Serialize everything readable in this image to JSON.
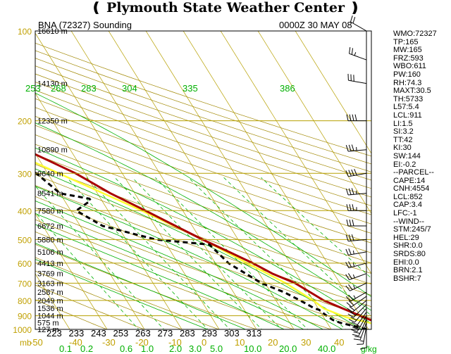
{
  "header": {
    "title": "Plymouth State Weather Center",
    "station_label": "BNA (72327) Sounding",
    "time_label": "0000Z 30 MAY 08"
  },
  "stats": [
    "WMO:72327",
    "TP:165",
    "MW:165",
    "FRZ:593",
    "WBO:611",
    "PW:160",
    "RH:74.3",
    "MAXT:30.5",
    "TH:5733",
    "L57:5.4",
    "LCL:911",
    "LI:1.5",
    "SI:3.2",
    "TT:42",
    "KI:30",
    "SW:144",
    "EI:-0.2",
    "--PARCEL--",
    "CAPE:14",
    "CNH:4554",
    "LCL:852",
    "CAP:3.4",
    "LFC:-1",
    "--WIND--",
    "STM:245/7",
    "HEL:29",
    "SHR:0.0",
    "SRDS:80",
    "EHI:0.0",
    "BRN:2.1",
    "BSHR:7"
  ],
  "colors": {
    "frame": "#000000",
    "isobar": "#b7a000",
    "isotherm": "#b7a000",
    "dry_adiabat": "#a08700",
    "moist_adiabat": "#00b000",
    "mixing_ratio": "#00b000",
    "temperature": "#a80000",
    "dewpoint": "#000000",
    "parcel": "#ffff33",
    "wind": "#000000",
    "axis_text": "#c0a000",
    "height_text": "#000000"
  },
  "chart_data": {
    "type": "line",
    "title": "BNA (72327) Sounding",
    "xlabel": "",
    "ylabel": "mb",
    "ylim": [
      1000,
      100
    ],
    "pressure_ticks": [
      100,
      200,
      300,
      400,
      500,
      600,
      700,
      800,
      900,
      1000
    ],
    "temperature_ticks": [
      "-50",
      "-40",
      "-30",
      "-20",
      "-10",
      "0",
      "10",
      "20",
      "30",
      "40"
    ],
    "bottom_theta_labels": [
      "223",
      "233",
      "243",
      "253",
      "263",
      "273",
      "283",
      "293",
      "303",
      "313"
    ],
    "upper_theta_labels": [
      "253",
      "268",
      "283",
      "304",
      "335",
      "386"
    ],
    "mixing_ratio_unit": "g/kg",
    "mixing_ratio_labels": [
      "0.1",
      "0.2",
      "0.6",
      "1.0",
      "2.0",
      "3.0",
      "5.0",
      "10.0",
      "20.0",
      "40.0"
    ],
    "height_labels": [
      {
        "p": 100,
        "label": "16610 m"
      },
      {
        "p": 150,
        "label": "14130 m"
      },
      {
        "p": 200,
        "label": "12350 m"
      },
      {
        "p": 250,
        "label": "10890 m"
      },
      {
        "p": 300,
        "label": "9640 m"
      },
      {
        "p": 350,
        "label": "8541 m"
      },
      {
        "p": 400,
        "label": "7580 m"
      },
      {
        "p": 450,
        "label": "6672 m"
      },
      {
        "p": 500,
        "label": "5880 m"
      },
      {
        "p": 550,
        "label": "5106 m"
      },
      {
        "p": 600,
        "label": "4413 m"
      },
      {
        "p": 650,
        "label": "3769 m"
      },
      {
        "p": 700,
        "label": "3163 m"
      },
      {
        "p": 750,
        "label": "2587 m"
      },
      {
        "p": 800,
        "label": "2049 m"
      },
      {
        "p": 850,
        "label": "1536 m"
      },
      {
        "p": 900,
        "label": "1044 m"
      },
      {
        "p": 950,
        "label": "575 m"
      },
      {
        "p": 1000,
        "label": "127 m"
      }
    ],
    "series": [
      {
        "key": "temperature",
        "points": [
          [
            1000,
            27.5
          ],
          [
            950,
            23.5
          ],
          [
            900,
            20
          ],
          [
            850,
            16.5
          ],
          [
            800,
            12.8
          ],
          [
            750,
            10.5
          ],
          [
            700,
            8
          ],
          [
            650,
            3.5
          ],
          [
            600,
            0
          ],
          [
            550,
            -4.5
          ],
          [
            500,
            -9.5
          ],
          [
            450,
            -14.5
          ],
          [
            400,
            -20
          ],
          [
            350,
            -26.5
          ],
          [
            300,
            -32.5
          ],
          [
            250,
            -42
          ],
          [
            200,
            -52
          ],
          [
            160,
            -60.5
          ],
          [
            150,
            -59
          ],
          [
            125,
            -52
          ],
          [
            100,
            -49
          ]
        ]
      },
      {
        "key": "dewpoint",
        "points": [
          [
            1000,
            19.5
          ],
          [
            970,
            16
          ],
          [
            950,
            13.5
          ],
          [
            930,
            12
          ],
          [
            900,
            11
          ],
          [
            860,
            10
          ],
          [
            850,
            9
          ],
          [
            800,
            6.5
          ],
          [
            750,
            3.5
          ],
          [
            700,
            -1
          ],
          [
            600,
            -6.5
          ],
          [
            520,
            -8.5
          ],
          [
            500,
            -22
          ],
          [
            450,
            -34
          ],
          [
            400,
            -38.5
          ],
          [
            370,
            -33
          ],
          [
            365,
            -33
          ],
          [
            350,
            -40
          ],
          [
            300,
            -43
          ],
          [
            250,
            -52
          ],
          [
            200,
            -62
          ],
          [
            160,
            -75
          ],
          [
            140,
            -67
          ],
          [
            130,
            -62
          ],
          [
            120,
            -63
          ],
          [
            115,
            -60
          ],
          [
            100,
            -60
          ]
        ]
      },
      {
        "key": "parcel",
        "points": [
          [
            1000,
            27.5
          ],
          [
            911,
            16
          ],
          [
            852,
            11.5
          ],
          [
            800,
            10
          ],
          [
            700,
            5.5
          ],
          [
            600,
            -1.5
          ],
          [
            500,
            -9.5
          ],
          [
            400,
            -21
          ],
          [
            300,
            -37
          ],
          [
            250,
            -47
          ],
          [
            200,
            -58
          ],
          [
            150,
            -72
          ],
          [
            130,
            -75
          ],
          [
            120,
            -77
          ]
        ]
      }
    ],
    "wind_barbs": [
      {
        "p": 1000,
        "dir": 180,
        "spd": 10
      },
      {
        "p": 975,
        "dir": 190,
        "spd": 15
      },
      {
        "p": 950,
        "dir": 200,
        "spd": 20
      },
      {
        "p": 925,
        "dir": 205,
        "spd": 20
      },
      {
        "p": 900,
        "dir": 210,
        "spd": 25
      },
      {
        "p": 875,
        "dir": 215,
        "spd": 20
      },
      {
        "p": 850,
        "dir": 220,
        "spd": 20
      },
      {
        "p": 825,
        "dir": 225,
        "spd": 20
      },
      {
        "p": 800,
        "dir": 230,
        "spd": 20
      },
      {
        "p": 775,
        "dir": 235,
        "spd": 20
      },
      {
        "p": 750,
        "dir": 240,
        "spd": 25
      },
      {
        "p": 700,
        "dir": 245,
        "spd": 25
      },
      {
        "p": 650,
        "dir": 250,
        "spd": 25
      },
      {
        "p": 600,
        "dir": 255,
        "spd": 25
      },
      {
        "p": 550,
        "dir": 260,
        "spd": 25
      },
      {
        "p": 500,
        "dir": 265,
        "spd": 30
      },
      {
        "p": 450,
        "dir": 270,
        "spd": 30
      },
      {
        "p": 400,
        "dir": 270,
        "spd": 35
      },
      {
        "p": 350,
        "dir": 265,
        "spd": 35
      },
      {
        "p": 300,
        "dir": 260,
        "spd": 40
      },
      {
        "p": 250,
        "dir": 265,
        "spd": 35
      },
      {
        "p": 200,
        "dir": 270,
        "spd": 40
      },
      {
        "p": 150,
        "dir": 280,
        "spd": 30
      },
      {
        "p": 125,
        "dir": 290,
        "spd": 25
      },
      {
        "p": 100,
        "dir": 300,
        "spd": 20
      }
    ]
  }
}
